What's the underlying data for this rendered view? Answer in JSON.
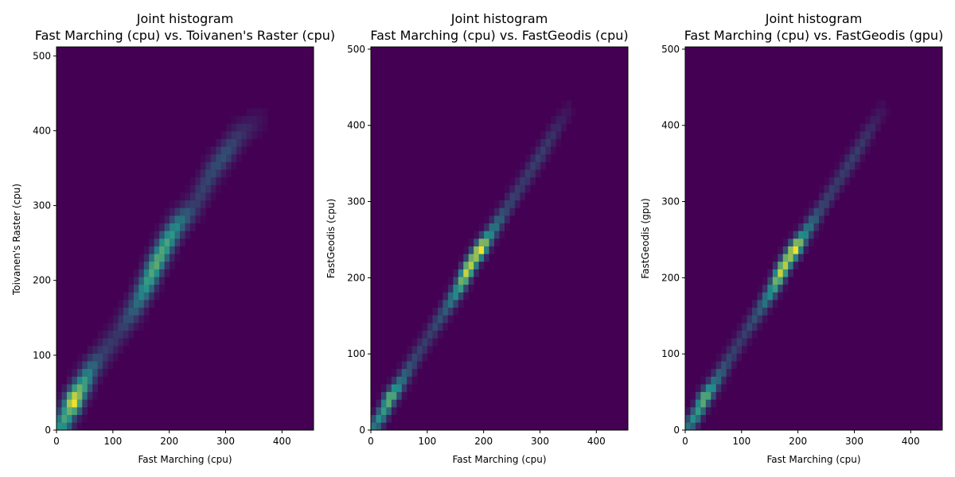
{
  "colormap": {
    "low": "#440154",
    "mid": "#21918c",
    "high": "#fde725"
  },
  "chart_data": [
    {
      "type": "heatmap",
      "title_line1": "Joint histogram",
      "title_line2": "Fast Marching (cpu) vs. Toivanen's Raster (cpu)",
      "xlabel": "Fast Marching (cpu)",
      "ylabel": "Toivanen's Raster (cpu)",
      "xlim": [
        0,
        456
      ],
      "ylim": [
        0,
        512
      ],
      "xticks": [
        0,
        100,
        200,
        300,
        400
      ],
      "yticks": [
        0,
        100,
        200,
        300,
        400,
        500
      ],
      "bins": 50,
      "spread": 1.6,
      "band": [
        {
          "x": 5,
          "y": 3,
          "w": 0.5
        },
        {
          "x": 15,
          "y": 15,
          "w": 0.6
        },
        {
          "x": 22,
          "y": 28,
          "w": 0.65
        },
        {
          "x": 30,
          "y": 38,
          "w": 1.0
        },
        {
          "x": 38,
          "y": 50,
          "w": 0.75
        },
        {
          "x": 48,
          "y": 62,
          "w": 0.6
        },
        {
          "x": 60,
          "y": 80,
          "w": 0.4
        },
        {
          "x": 80,
          "y": 100,
          "w": 0.22
        },
        {
          "x": 110,
          "y": 130,
          "w": 0.18
        },
        {
          "x": 140,
          "y": 165,
          "w": 0.35
        },
        {
          "x": 160,
          "y": 195,
          "w": 0.55
        },
        {
          "x": 175,
          "y": 220,
          "w": 0.65
        },
        {
          "x": 195,
          "y": 250,
          "w": 0.6
        },
        {
          "x": 215,
          "y": 275,
          "w": 0.45
        },
        {
          "x": 245,
          "y": 300,
          "w": 0.2
        },
        {
          "x": 275,
          "y": 345,
          "w": 0.25
        },
        {
          "x": 300,
          "y": 370,
          "w": 0.28
        },
        {
          "x": 325,
          "y": 395,
          "w": 0.18
        },
        {
          "x": 360,
          "y": 415,
          "w": 0.06
        }
      ]
    },
    {
      "type": "heatmap",
      "title_line1": "Joint histogram",
      "title_line2": "Fast Marching (cpu) vs. FastGeodis (cpu)",
      "xlabel": "Fast Marching (cpu)",
      "ylabel": "FastGeodis (cpu)",
      "xlim": [
        0,
        456
      ],
      "ylim": [
        0,
        503
      ],
      "xticks": [
        0,
        100,
        200,
        300,
        400
      ],
      "yticks": [
        0,
        100,
        200,
        300,
        400,
        500
      ],
      "bins": 50,
      "spread": 1.1,
      "band": [
        {
          "x": 5,
          "y": 5,
          "w": 0.4
        },
        {
          "x": 15,
          "y": 15,
          "w": 0.5
        },
        {
          "x": 25,
          "y": 28,
          "w": 0.55
        },
        {
          "x": 32,
          "y": 40,
          "w": 0.7
        },
        {
          "x": 42,
          "y": 50,
          "w": 0.6
        },
        {
          "x": 55,
          "y": 65,
          "w": 0.4
        },
        {
          "x": 75,
          "y": 90,
          "w": 0.25
        },
        {
          "x": 100,
          "y": 120,
          "w": 0.2
        },
        {
          "x": 130,
          "y": 155,
          "w": 0.3
        },
        {
          "x": 155,
          "y": 185,
          "w": 0.55
        },
        {
          "x": 170,
          "y": 208,
          "w": 0.9
        },
        {
          "x": 185,
          "y": 228,
          "w": 0.8
        },
        {
          "x": 195,
          "y": 238,
          "w": 1.0
        },
        {
          "x": 210,
          "y": 255,
          "w": 0.5
        },
        {
          "x": 240,
          "y": 290,
          "w": 0.25
        },
        {
          "x": 270,
          "y": 325,
          "w": 0.2
        },
        {
          "x": 300,
          "y": 360,
          "w": 0.22
        },
        {
          "x": 320,
          "y": 385,
          "w": 0.18
        },
        {
          "x": 350,
          "y": 420,
          "w": 0.06
        }
      ]
    },
    {
      "type": "heatmap",
      "title_line1": "Joint histogram",
      "title_line2": "Fast Marching (cpu) vs. FastGeodis (gpu)",
      "xlabel": "Fast Marching (cpu)",
      "ylabel": "FastGeodis (gpu)",
      "xlim": [
        0,
        456
      ],
      "ylim": [
        0,
        503
      ],
      "xticks": [
        0,
        100,
        200,
        300,
        400
      ],
      "yticks": [
        0,
        100,
        200,
        300,
        400,
        500
      ],
      "bins": 50,
      "spread": 1.1,
      "band": [
        {
          "x": 5,
          "y": 5,
          "w": 0.4
        },
        {
          "x": 15,
          "y": 15,
          "w": 0.5
        },
        {
          "x": 25,
          "y": 28,
          "w": 0.55
        },
        {
          "x": 32,
          "y": 40,
          "w": 0.7
        },
        {
          "x": 42,
          "y": 50,
          "w": 0.6
        },
        {
          "x": 55,
          "y": 65,
          "w": 0.4
        },
        {
          "x": 75,
          "y": 90,
          "w": 0.25
        },
        {
          "x": 100,
          "y": 120,
          "w": 0.2
        },
        {
          "x": 130,
          "y": 155,
          "w": 0.3
        },
        {
          "x": 155,
          "y": 185,
          "w": 0.55
        },
        {
          "x": 170,
          "y": 208,
          "w": 0.9
        },
        {
          "x": 185,
          "y": 228,
          "w": 0.8
        },
        {
          "x": 195,
          "y": 238,
          "w": 1.0
        },
        {
          "x": 210,
          "y": 255,
          "w": 0.5
        },
        {
          "x": 240,
          "y": 290,
          "w": 0.25
        },
        {
          "x": 270,
          "y": 325,
          "w": 0.2
        },
        {
          "x": 300,
          "y": 360,
          "w": 0.22
        },
        {
          "x": 320,
          "y": 385,
          "w": 0.18
        },
        {
          "x": 350,
          "y": 420,
          "w": 0.06
        }
      ]
    }
  ]
}
